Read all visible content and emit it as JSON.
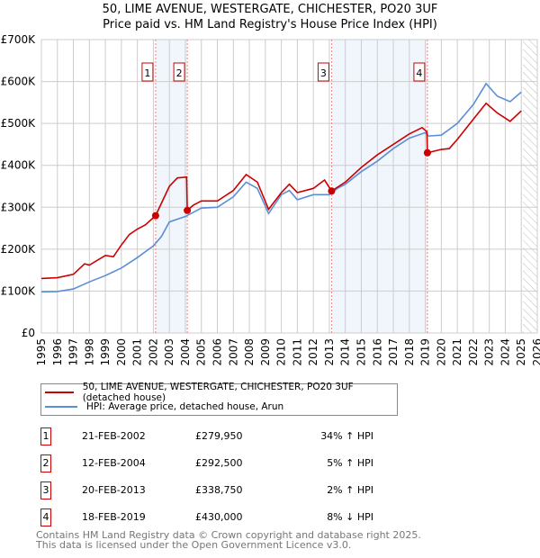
{
  "chart_data": {
    "type": "line",
    "title": "50, LIME AVENUE, WESTERGATE, CHICHESTER, PO20 3UF",
    "subtitle": "Price paid vs. HM Land Registry's House Price Index (HPI)",
    "xlim": [
      1995,
      2026
    ],
    "ylim": [
      0,
      700000
    ],
    "x_ticks": [
      "1995",
      "1996",
      "1997",
      "1998",
      "1999",
      "2000",
      "2001",
      "2002",
      "2003",
      "2004",
      "2005",
      "2006",
      "2007",
      "2008",
      "2009",
      "2010",
      "2011",
      "2012",
      "2013",
      "2014",
      "2015",
      "2016",
      "2017",
      "2018",
      "2019",
      "2020",
      "2021",
      "2022",
      "2023",
      "2024",
      "2025",
      "2026"
    ],
    "y_ticks": [
      {
        "v": 0,
        "label": "£0"
      },
      {
        "v": 100000,
        "label": "£100K"
      },
      {
        "v": 200000,
        "label": "£200K"
      },
      {
        "v": 300000,
        "label": "£300K"
      },
      {
        "v": 400000,
        "label": "£400K"
      },
      {
        "v": 500000,
        "label": "£500K"
      },
      {
        "v": 600000,
        "label": "£600K"
      },
      {
        "v": 700000,
        "label": "£700K"
      }
    ],
    "grid": true,
    "series": [
      {
        "name": "50, LIME AVENUE, WESTERGATE, CHICHESTER, PO20 3UF (detached house)",
        "color": "#cc0000",
        "x": [
          1995,
          1996,
          1997,
          1997.7,
          1998,
          1999,
          1999.5,
          2000,
          2000.5,
          2001,
          2001.5,
          2002.14,
          2003,
          2003.5,
          2004.08,
          2004.12,
          2004.5,
          2005,
          2006,
          2007,
          2007.8,
          2008.5,
          2009.2,
          2010,
          2010.5,
          2011,
          2012,
          2012.7,
          2013.14,
          2014,
          2015,
          2016,
          2017,
          2018,
          2018.8,
          2019.1,
          2019.13,
          2020,
          2020.5,
          2021,
          2022,
          2022.8,
          2023.5,
          2024.3,
          2025
        ],
        "y": [
          130000,
          132000,
          140000,
          165000,
          162000,
          185000,
          182000,
          210000,
          235000,
          248000,
          258000,
          279950,
          350000,
          370000,
          372000,
          292500,
          305000,
          315000,
          315000,
          340000,
          378000,
          360000,
          295000,
          335000,
          355000,
          335000,
          345000,
          365000,
          338750,
          360000,
          395000,
          425000,
          450000,
          475000,
          490000,
          480000,
          430000,
          438000,
          440000,
          462000,
          510000,
          548000,
          525000,
          505000,
          530000
        ]
      },
      {
        "name": "HPI: Average price, detached house, Arun",
        "color": "#5b8fd4",
        "x": [
          1995,
          1996,
          1997,
          1998,
          1999,
          2000,
          2001,
          2002,
          2002.5,
          2003,
          2004,
          2005,
          2006,
          2007,
          2007.8,
          2008.5,
          2009.2,
          2010,
          2010.5,
          2011,
          2012,
          2013,
          2013.5,
          2014,
          2015,
          2016,
          2017,
          2018,
          2019,
          2019.2,
          2020,
          2021,
          2022,
          2022.8,
          2023.5,
          2024.3,
          2025
        ],
        "y": [
          98000,
          99000,
          105000,
          122000,
          137000,
          155000,
          180000,
          208000,
          230000,
          265000,
          278000,
          298000,
          300000,
          325000,
          360000,
          345000,
          285000,
          330000,
          340000,
          318000,
          330000,
          330000,
          345000,
          355000,
          385000,
          410000,
          440000,
          465000,
          478000,
          470000,
          472000,
          500000,
          545000,
          595000,
          565000,
          552000,
          575000
        ]
      }
    ],
    "sales": [
      {
        "n": "1",
        "x": 2002.14,
        "date": "21-FEB-2002",
        "price": "£279,950",
        "v": 279950,
        "hpi": "34% ↑ HPI"
      },
      {
        "n": "2",
        "x": 2004.12,
        "date": "12-FEB-2004",
        "price": "£292,500",
        "v": 292500,
        "hpi": "5% ↑ HPI"
      },
      {
        "n": "3",
        "x": 2013.14,
        "date": "20-FEB-2013",
        "price": "£338,750",
        "v": 338750,
        "hpi": "2% ↑ HPI"
      },
      {
        "n": "4",
        "x": 2019.13,
        "date": "18-FEB-2019",
        "price": "£430,000",
        "v": 430000,
        "hpi": "8% ↓ HPI"
      }
    ],
    "forecast_from": 2025.1
  },
  "footer": {
    "line1": "Contains HM Land Registry data © Crown copyright and database right 2025.",
    "line2": "This data is licensed under the Open Government Licence v3.0."
  }
}
